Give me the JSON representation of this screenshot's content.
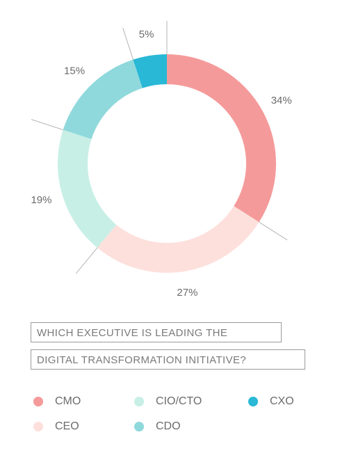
{
  "chart_data": {
    "type": "pie",
    "donut": true,
    "title_lines": [
      "WHICH EXECUTIVE IS LEADING THE",
      "DIGITAL TRANSFORMATION INITIATIVE?"
    ],
    "slices": [
      {
        "name": "CMO",
        "value": 34,
        "label": "34%",
        "color": "#f59a9a"
      },
      {
        "name": "CEO",
        "value": 27,
        "label": "27%",
        "color": "#fde0dc"
      },
      {
        "name": "CIO/CTO",
        "value": 19,
        "label": "19%",
        "color": "#c8efe6"
      },
      {
        "name": "CDO",
        "value": 15,
        "label": "15%",
        "color": "#8fd9dc"
      },
      {
        "name": "CXO",
        "value": 5,
        "label": "5%",
        "color": "#29b8d6"
      }
    ],
    "legend": [
      {
        "name": "CMO",
        "color": "#f59a9a"
      },
      {
        "name": "CIO/CTO",
        "color": "#c8efe6"
      },
      {
        "name": "CXO",
        "color": "#29b8d6"
      },
      {
        "name": "CEO",
        "color": "#fde0dc"
      },
      {
        "name": "CDO",
        "color": "#8fd9dc"
      }
    ],
    "legend_placement": "bottom",
    "leader_line_color": "#b5b5b5"
  }
}
